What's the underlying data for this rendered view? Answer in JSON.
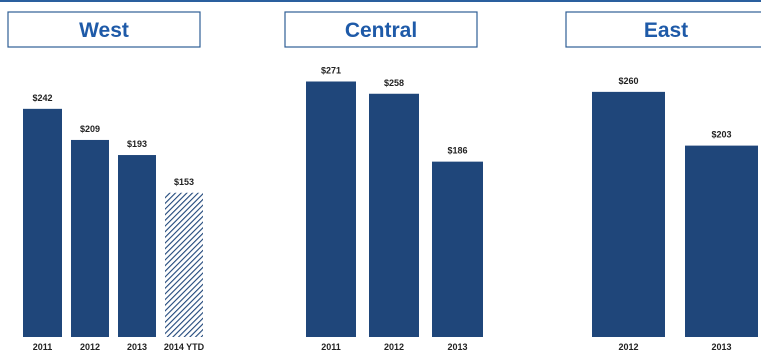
{
  "colors": {
    "bar": "#1f467a",
    "hatch_bg": "#ffffff",
    "title": "#1e5aa8",
    "box_border": "#2f5f95",
    "top_rule": "#2a5f9e"
  },
  "chart_data": [
    {
      "type": "bar",
      "title": "West",
      "categories": [
        "2011",
        "2012",
        "2013",
        "2014 YTD"
      ],
      "values": [
        242,
        209,
        193,
        153
      ],
      "value_labels": [
        "$242",
        "$209",
        "$193",
        "$153"
      ],
      "hatched": [
        false,
        false,
        false,
        true
      ],
      "ylim": [
        0,
        300
      ]
    },
    {
      "type": "bar",
      "title": "Central",
      "categories": [
        "2011",
        "2012",
        "2013"
      ],
      "values": [
        271,
        258,
        186
      ],
      "value_labels": [
        "$271",
        "$258",
        "$186"
      ],
      "hatched": [
        false,
        false,
        false
      ],
      "ylim": [
        0,
        300
      ]
    },
    {
      "type": "bar",
      "title": "East",
      "categories": [
        "2012",
        "2013"
      ],
      "values": [
        260,
        203
      ],
      "value_labels": [
        "$260",
        "$203"
      ],
      "hatched": [
        false,
        false
      ],
      "ylim": [
        0,
        300
      ]
    }
  ]
}
